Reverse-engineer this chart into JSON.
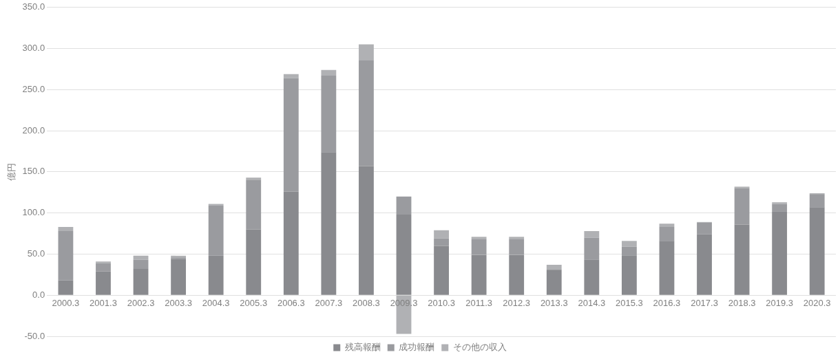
{
  "chart_data": {
    "type": "bar",
    "stacked": true,
    "ylabel": "億円",
    "categories": [
      "2000.3",
      "2001.3",
      "2002.3",
      "2003.3",
      "2004.3",
      "2005.3",
      "2006.3",
      "2007.3",
      "2008.3",
      "2009.3",
      "2010.3",
      "2011.3",
      "2012.3",
      "2013.3",
      "2014.3",
      "2015.3",
      "2016.3",
      "2017.3",
      "2018.3",
      "2019.3",
      "2020.3"
    ],
    "series": [
      {
        "name": "残高報酬",
        "color": "#898a8e",
        "values": [
          18,
          29,
          32,
          44,
          48,
          80,
          126,
          174,
          157,
          98,
          60,
          49,
          49,
          31,
          43,
          48,
          66,
          74,
          86,
          102,
          107
        ]
      },
      {
        "name": "成功報酬",
        "color": "#9a9b9f",
        "values": [
          60,
          10,
          11,
          2,
          61,
          60,
          138,
          93,
          129,
          22,
          9,
          19,
          19,
          0,
          27,
          11,
          17,
          14,
          44,
          9,
          16
        ]
      },
      {
        "name": "その他の収入",
        "color": "#b0b1b4",
        "values": [
          5,
          2,
          5,
          2,
          2,
          3,
          5,
          7,
          19,
          -47,
          10,
          3,
          3,
          6,
          8,
          7,
          4,
          1,
          2,
          2,
          1
        ]
      }
    ],
    "ylim": [
      -50,
      350
    ],
    "yticks": [
      {
        "value": -50,
        "label": "-50.0"
      },
      {
        "value": 0,
        "label": "0.0"
      },
      {
        "value": 50,
        "label": "50.0"
      },
      {
        "value": 100,
        "label": "100.0"
      },
      {
        "value": 150,
        "label": "150.0"
      },
      {
        "value": 200,
        "label": "200.0"
      },
      {
        "value": 250,
        "label": "250.0"
      },
      {
        "value": 300,
        "label": "300.0"
      },
      {
        "value": 350,
        "label": "350.0"
      }
    ],
    "grid": "y",
    "legend": "bottom"
  }
}
